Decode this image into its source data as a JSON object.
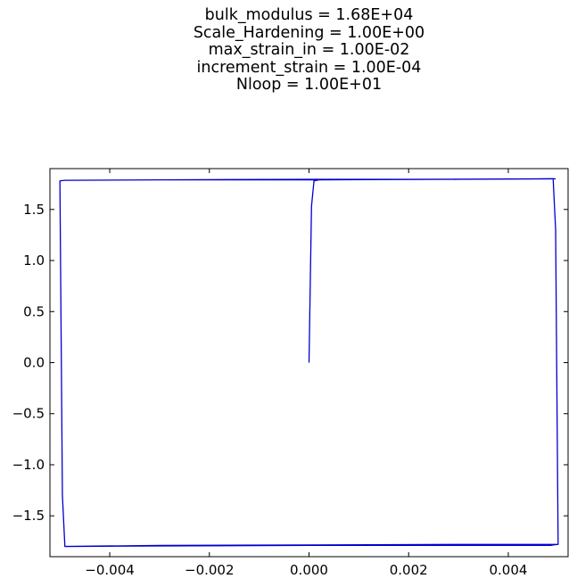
{
  "title_lines": [
    "bulk_modulus = 1.68E+04",
    "Scale_Hardening = 1.00E+00",
    "max_strain_in = 1.00E-02",
    "increment_strain = 1.00E-04",
    "Nloop = 1.00E+01"
  ],
  "colors": {
    "series": "#0000cc",
    "axes": "#000000",
    "background": "#ffffff"
  },
  "chart_data": {
    "type": "line",
    "title": "bulk_modulus = 1.68E+04\nScale_Hardening = 1.00E+00\nmax_strain_in = 1.00E-02\nincrement_strain = 1.00E-04\nNloop = 1.00E+01",
    "xlabel": "",
    "ylabel": "",
    "xlim": [
      -0.0052,
      0.0052
    ],
    "ylim": [
      -1.9,
      1.9
    ],
    "grid": false,
    "legend": "none",
    "x_ticks": [
      -0.004,
      -0.002,
      0.0,
      0.002,
      0.004
    ],
    "x_tick_labels": [
      "−0.004",
      "−0.002",
      "0.000",
      "0.002",
      "0.004"
    ],
    "y_ticks": [
      1.5,
      1.0,
      0.5,
      0.0,
      -0.5,
      -1.0,
      -1.5
    ],
    "y_tick_labels": [
      "1.5",
      "1.0",
      "0.5",
      "0.0",
      "−0.5",
      "−1.0",
      "−1.5"
    ],
    "series": [
      {
        "x": [
          0.0,
          5e-05,
          0.0001,
          0.0002,
          0.002,
          0.0049,
          0.00495,
          0.005,
          0.0049,
          0.00485,
          0.003,
          0.0,
          -0.003,
          -0.0049,
          -0.00495,
          -0.005,
          -0.0049,
          -0.00485,
          -0.003,
          0.0,
          0.003,
          0.0049,
          0.00495,
          0.005,
          0.0049,
          0.003,
          0.0,
          -0.003,
          -0.0049,
          -0.00495,
          -0.005,
          -0.0049,
          -0.003,
          0.0,
          0.003,
          0.00495
        ],
        "y": [
          0.0,
          1.53,
          1.78,
          1.79,
          1.795,
          1.8,
          1.3,
          -1.78,
          -1.785,
          -1.79,
          -1.79,
          -1.79,
          -1.795,
          -1.8,
          -1.3,
          1.78,
          1.785,
          1.785,
          1.79,
          1.79,
          1.795,
          1.8,
          1.3,
          -1.78,
          -1.78,
          -1.78,
          -1.785,
          -1.79,
          -1.8,
          -1.3,
          1.78,
          1.785,
          1.79,
          1.795,
          1.795,
          1.8
        ]
      }
    ]
  }
}
